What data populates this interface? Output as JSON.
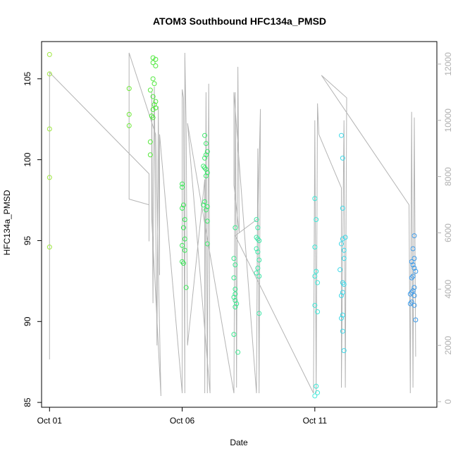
{
  "chart_data": {
    "type": "scatter",
    "title": "ATOM3 Southbound HFC134a_PMSD",
    "xlabel": "Date",
    "ylabel": "HFC134a_PMSD",
    "x_unit": "days since Oct 01",
    "xlim": [
      -0.3,
      14.6
    ],
    "ylim": [
      84.7,
      107.3
    ],
    "y2lim": [
      -200,
      12800
    ],
    "x_ticks": [
      {
        "value": 0,
        "label": "Oct 01"
      },
      {
        "value": 5,
        "label": "Oct 06"
      },
      {
        "value": 10,
        "label": "Oct 11"
      }
    ],
    "y_ticks": [
      85,
      90,
      95,
      100,
      105
    ],
    "y2_ticks": [
      0,
      2000,
      4000,
      6000,
      8000,
      10000,
      12000
    ],
    "grid": false,
    "series": [
      {
        "name": "HFC134a_PMSD",
        "color_note": "points colored by time, green to blue",
        "points": [
          {
            "x": 0.0,
            "y": 106.5,
            "c": "#9ee83f"
          },
          {
            "x": 0.0,
            "y": 105.3,
            "c": "#9ee83f"
          },
          {
            "x": 0.0,
            "y": 101.9,
            "c": "#9ee83f"
          },
          {
            "x": 0.0,
            "y": 98.9,
            "c": "#9ee83f"
          },
          {
            "x": 0.0,
            "y": 94.6,
            "c": "#9ee83f"
          },
          {
            "x": 3.0,
            "y": 104.4,
            "c": "#6fe83a"
          },
          {
            "x": 3.0,
            "y": 102.8,
            "c": "#6fe83a"
          },
          {
            "x": 3.0,
            "y": 102.1,
            "c": "#6fe83a"
          },
          {
            "x": 3.8,
            "y": 104.3,
            "c": "#55e83a"
          },
          {
            "x": 3.8,
            "y": 101.1,
            "c": "#55e83a"
          },
          {
            "x": 3.8,
            "y": 100.3,
            "c": "#55e83a"
          },
          {
            "x": 3.9,
            "y": 106.3,
            "c": "#4fe83c"
          },
          {
            "x": 3.9,
            "y": 106.0,
            "c": "#4fe83c"
          },
          {
            "x": 4.0,
            "y": 105.8,
            "c": "#4fe83c"
          },
          {
            "x": 4.0,
            "y": 106.2,
            "c": "#4fe83c"
          },
          {
            "x": 3.9,
            "y": 105.0,
            "c": "#4fe83c"
          },
          {
            "x": 3.95,
            "y": 104.7,
            "c": "#4fe83c"
          },
          {
            "x": 3.9,
            "y": 103.9,
            "c": "#4fe83c"
          },
          {
            "x": 4.0,
            "y": 103.6,
            "c": "#4fe83c"
          },
          {
            "x": 3.95,
            "y": 103.4,
            "c": "#4fe83c"
          },
          {
            "x": 4.0,
            "y": 103.2,
            "c": "#4fe83c"
          },
          {
            "x": 3.9,
            "y": 103.1,
            "c": "#4fe83c"
          },
          {
            "x": 3.85,
            "y": 102.7,
            "c": "#4fe83c"
          },
          {
            "x": 3.9,
            "y": 102.6,
            "c": "#4fe83c"
          },
          {
            "x": 5.0,
            "y": 98.5,
            "c": "#3de85a"
          },
          {
            "x": 5.0,
            "y": 98.3,
            "c": "#3de85a"
          },
          {
            "x": 5.05,
            "y": 97.2,
            "c": "#3de85a"
          },
          {
            "x": 5.0,
            "y": 97.0,
            "c": "#3de85a"
          },
          {
            "x": 5.1,
            "y": 96.3,
            "c": "#3de85a"
          },
          {
            "x": 5.05,
            "y": 95.8,
            "c": "#3de85a"
          },
          {
            "x": 5.1,
            "y": 95.1,
            "c": "#3de85a"
          },
          {
            "x": 5.0,
            "y": 94.7,
            "c": "#3de85a"
          },
          {
            "x": 5.1,
            "y": 94.4,
            "c": "#3de85a"
          },
          {
            "x": 5.0,
            "y": 93.7,
            "c": "#3de85a"
          },
          {
            "x": 5.05,
            "y": 93.6,
            "c": "#3de85a"
          },
          {
            "x": 5.15,
            "y": 92.1,
            "c": "#3de85a"
          },
          {
            "x": 5.85,
            "y": 101.5,
            "c": "#3de86c"
          },
          {
            "x": 5.9,
            "y": 101.0,
            "c": "#3de86c"
          },
          {
            "x": 5.95,
            "y": 100.5,
            "c": "#3de86c"
          },
          {
            "x": 5.9,
            "y": 100.3,
            "c": "#3de86c"
          },
          {
            "x": 5.85,
            "y": 100.1,
            "c": "#3de86c"
          },
          {
            "x": 5.8,
            "y": 99.6,
            "c": "#3de86c"
          },
          {
            "x": 5.85,
            "y": 99.5,
            "c": "#3de86c"
          },
          {
            "x": 5.9,
            "y": 99.4,
            "c": "#3de86c"
          },
          {
            "x": 5.95,
            "y": 99.2,
            "c": "#3de86c"
          },
          {
            "x": 5.9,
            "y": 99.0,
            "c": "#3de86c"
          },
          {
            "x": 5.85,
            "y": 97.4,
            "c": "#3de86c"
          },
          {
            "x": 5.8,
            "y": 97.2,
            "c": "#3de86c"
          },
          {
            "x": 5.95,
            "y": 97.1,
            "c": "#3de86c"
          },
          {
            "x": 5.9,
            "y": 96.9,
            "c": "#3de86c"
          },
          {
            "x": 5.95,
            "y": 96.2,
            "c": "#3de86c"
          },
          {
            "x": 5.95,
            "y": 94.8,
            "c": "#3de86c"
          },
          {
            "x": 7.0,
            "y": 95.8,
            "c": "#3de890"
          },
          {
            "x": 6.95,
            "y": 93.9,
            "c": "#3de890"
          },
          {
            "x": 7.0,
            "y": 93.5,
            "c": "#3de890"
          },
          {
            "x": 6.95,
            "y": 92.7,
            "c": "#3de890"
          },
          {
            "x": 7.0,
            "y": 92.0,
            "c": "#3de890"
          },
          {
            "x": 7.0,
            "y": 91.7,
            "c": "#3de890"
          },
          {
            "x": 6.95,
            "y": 91.5,
            "c": "#3de890"
          },
          {
            "x": 7.0,
            "y": 91.3,
            "c": "#3de890"
          },
          {
            "x": 7.05,
            "y": 91.1,
            "c": "#3de890"
          },
          {
            "x": 7.0,
            "y": 90.9,
            "c": "#3de890"
          },
          {
            "x": 6.95,
            "y": 89.2,
            "c": "#3de890"
          },
          {
            "x": 7.1,
            "y": 88.1,
            "c": "#3de890"
          },
          {
            "x": 7.8,
            "y": 96.3,
            "c": "#3de8a8"
          },
          {
            "x": 7.85,
            "y": 95.8,
            "c": "#3de8a8"
          },
          {
            "x": 7.8,
            "y": 95.2,
            "c": "#3de8a8"
          },
          {
            "x": 7.85,
            "y": 95.1,
            "c": "#3de8a8"
          },
          {
            "x": 7.9,
            "y": 95.0,
            "c": "#3de8a8"
          },
          {
            "x": 7.8,
            "y": 94.5,
            "c": "#3de8a8"
          },
          {
            "x": 7.85,
            "y": 94.3,
            "c": "#3de8a8"
          },
          {
            "x": 7.9,
            "y": 93.8,
            "c": "#3de8a8"
          },
          {
            "x": 7.85,
            "y": 93.3,
            "c": "#3de8a8"
          },
          {
            "x": 7.8,
            "y": 93.0,
            "c": "#3de8a8"
          },
          {
            "x": 7.9,
            "y": 92.8,
            "c": "#3de8a8"
          },
          {
            "x": 7.9,
            "y": 90.5,
            "c": "#3de8a8"
          },
          {
            "x": 10.0,
            "y": 97.6,
            "c": "#3de8d8"
          },
          {
            "x": 10.05,
            "y": 96.3,
            "c": "#3de8d8"
          },
          {
            "x": 10.0,
            "y": 94.6,
            "c": "#3de8d8"
          },
          {
            "x": 10.05,
            "y": 93.1,
            "c": "#3de8d8"
          },
          {
            "x": 10.0,
            "y": 92.8,
            "c": "#3de8d8"
          },
          {
            "x": 10.1,
            "y": 92.4,
            "c": "#3de8d8"
          },
          {
            "x": 10.0,
            "y": 91.0,
            "c": "#3de8d8"
          },
          {
            "x": 10.1,
            "y": 90.6,
            "c": "#3de8d8"
          },
          {
            "x": 10.05,
            "y": 86.0,
            "c": "#3de8d8"
          },
          {
            "x": 10.1,
            "y": 85.6,
            "c": "#3de8d8"
          },
          {
            "x": 10.0,
            "y": 85.4,
            "c": "#3de8d8"
          },
          {
            "x": 11.0,
            "y": 101.5,
            "c": "#3dd8e8"
          },
          {
            "x": 11.05,
            "y": 100.1,
            "c": "#3dd8e8"
          },
          {
            "x": 11.05,
            "y": 97.0,
            "c": "#3dd8e8"
          },
          {
            "x": 11.15,
            "y": 95.2,
            "c": "#3dd8e8"
          },
          {
            "x": 11.05,
            "y": 95.1,
            "c": "#3dd8e8"
          },
          {
            "x": 11.0,
            "y": 94.8,
            "c": "#3dd8e8"
          },
          {
            "x": 11.1,
            "y": 94.4,
            "c": "#3dd8e8"
          },
          {
            "x": 11.1,
            "y": 93.9,
            "c": "#3dd8e8"
          },
          {
            "x": 10.95,
            "y": 93.2,
            "c": "#3dd8e8"
          },
          {
            "x": 11.05,
            "y": 92.4,
            "c": "#3dd8e8"
          },
          {
            "x": 11.1,
            "y": 92.3,
            "c": "#3dd8e8"
          },
          {
            "x": 11.05,
            "y": 91.8,
            "c": "#3dd8e8"
          },
          {
            "x": 11.0,
            "y": 91.6,
            "c": "#3dd8e8"
          },
          {
            "x": 11.05,
            "y": 90.4,
            "c": "#3dd8e8"
          },
          {
            "x": 11.0,
            "y": 90.2,
            "c": "#3dd8e8"
          },
          {
            "x": 11.05,
            "y": 89.4,
            "c": "#3dd8e8"
          },
          {
            "x": 11.1,
            "y": 88.2,
            "c": "#3dd8e8"
          },
          {
            "x": 13.75,
            "y": 95.3,
            "c": "#3d9ae8"
          },
          {
            "x": 13.7,
            "y": 94.5,
            "c": "#3d9ae8"
          },
          {
            "x": 13.75,
            "y": 93.9,
            "c": "#3d9ae8"
          },
          {
            "x": 13.65,
            "y": 93.7,
            "c": "#3d9ae8"
          },
          {
            "x": 13.7,
            "y": 93.5,
            "c": "#3d9ae8"
          },
          {
            "x": 13.8,
            "y": 93.1,
            "c": "#3d9ae8"
          },
          {
            "x": 13.75,
            "y": 93.3,
            "c": "#3d9ae8"
          },
          {
            "x": 13.7,
            "y": 92.8,
            "c": "#3d9ae8"
          },
          {
            "x": 13.65,
            "y": 92.7,
            "c": "#3d9ae8"
          },
          {
            "x": 13.75,
            "y": 92.1,
            "c": "#3d9ae8"
          },
          {
            "x": 13.7,
            "y": 91.9,
            "c": "#3d9ae8"
          },
          {
            "x": 13.65,
            "y": 91.8,
            "c": "#3d9ae8"
          },
          {
            "x": 13.6,
            "y": 91.7,
            "c": "#3d9ae8"
          },
          {
            "x": 13.75,
            "y": 91.6,
            "c": "#3d9ae8"
          },
          {
            "x": 13.65,
            "y": 91.2,
            "c": "#3d9ae8"
          },
          {
            "x": 13.6,
            "y": 91.1,
            "c": "#3d9ae8"
          },
          {
            "x": 13.75,
            "y": 91.0,
            "c": "#3d9ae8"
          },
          {
            "x": 13.8,
            "y": 90.1,
            "c": "#3d9ae8"
          }
        ]
      },
      {
        "name": "secondary axis trace",
        "color": "#b4b4b4",
        "axis": "right",
        "points": [
          {
            "x": 0.0,
            "y": 1500
          },
          {
            "x": 0.0,
            "y": 11700
          },
          {
            "x": 3.75,
            "y": 8100
          },
          {
            "x": 3.75,
            "y": 5700
          },
          {
            "x": 3.75,
            "y": 7000
          },
          {
            "x": 3.0,
            "y": 7200
          },
          {
            "x": 3.0,
            "y": 12400
          },
          {
            "x": 4.0,
            "y": 9500
          },
          {
            "x": 4.2,
            "y": 200
          },
          {
            "x": 3.85,
            "y": 6500
          },
          {
            "x": 3.85,
            "y": 11000
          },
          {
            "x": 3.9,
            "y": 3500
          },
          {
            "x": 3.95,
            "y": 11200
          },
          {
            "x": 4.05,
            "y": 2000
          },
          {
            "x": 4.1,
            "y": 10500
          },
          {
            "x": 4.15,
            "y": 4500
          },
          {
            "x": 4.15,
            "y": 9500
          },
          {
            "x": 5.0,
            "y": 300
          },
          {
            "x": 5.0,
            "y": 11100
          },
          {
            "x": 5.05,
            "y": 10800
          },
          {
            "x": 5.1,
            "y": 300
          },
          {
            "x": 5.1,
            "y": 12400
          },
          {
            "x": 5.15,
            "y": 9800
          },
          {
            "x": 5.2,
            "y": 2000
          },
          {
            "x": 5.85,
            "y": 7900
          },
          {
            "x": 5.85,
            "y": 300
          },
          {
            "x": 5.9,
            "y": 11000
          },
          {
            "x": 5.95,
            "y": 300
          },
          {
            "x": 6.0,
            "y": 11300
          },
          {
            "x": 6.05,
            "y": 300
          },
          {
            "x": 5.2,
            "y": 9900
          },
          {
            "x": 6.95,
            "y": 300
          },
          {
            "x": 7.0,
            "y": 11000
          },
          {
            "x": 7.05,
            "y": 500
          },
          {
            "x": 7.1,
            "y": 11900
          },
          {
            "x": 7.15,
            "y": 6000
          },
          {
            "x": 6.95,
            "y": 7700
          },
          {
            "x": 6.95,
            "y": 11000
          },
          {
            "x": 7.8,
            "y": 300
          },
          {
            "x": 7.85,
            "y": 9000
          },
          {
            "x": 7.9,
            "y": 300
          },
          {
            "x": 7.95,
            "y": 10400
          },
          {
            "x": 7.85,
            "y": 6500
          },
          {
            "x": 7.0,
            "y": 5900
          },
          {
            "x": 9.95,
            "y": 300
          },
          {
            "x": 10.0,
            "y": 10000
          },
          {
            "x": 10.05,
            "y": 300
          },
          {
            "x": 10.1,
            "y": 10600
          },
          {
            "x": 10.15,
            "y": 9500
          },
          {
            "x": 11.0,
            "y": 7600
          },
          {
            "x": 11.0,
            "y": 500
          },
          {
            "x": 11.1,
            "y": 10000
          },
          {
            "x": 11.15,
            "y": 500
          },
          {
            "x": 11.2,
            "y": 10800
          },
          {
            "x": 10.25,
            "y": 11600
          },
          {
            "x": 13.55,
            "y": 7000
          },
          {
            "x": 13.6,
            "y": 300
          },
          {
            "x": 13.65,
            "y": 10300
          },
          {
            "x": 13.7,
            "y": 500
          },
          {
            "x": 13.75,
            "y": 10100
          },
          {
            "x": 13.8,
            "y": 1600
          }
        ]
      }
    ]
  }
}
